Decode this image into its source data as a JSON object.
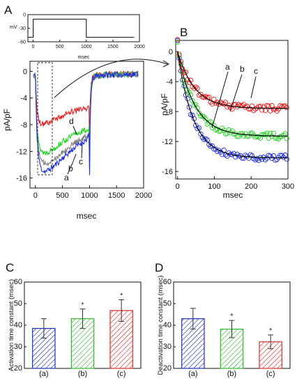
{
  "chart_data": [
    {
      "panel_label": "A",
      "type": "line",
      "inset": {
        "ylabel": "mV",
        "xlabel": "msec",
        "xlim": [
          -100,
          2000
        ],
        "ylim": [
          -60,
          0
        ],
        "xticks": [
          "0",
          "500",
          "1000",
          "1500",
          "2000"
        ],
        "yticks": [
          "0",
          "-30",
          "-60"
        ],
        "protocol": [
          [
            -100,
            -50
          ],
          [
            0,
            -50
          ],
          [
            0,
            -10
          ],
          [
            1000,
            -10
          ],
          [
            1000,
            -50
          ],
          [
            1900,
            -50
          ]
        ]
      },
      "xlabel": "msec",
      "ylabel": "pA/pF",
      "xlim": [
        -100,
        2000
      ],
      "ylim": [
        -17.5,
        1.5
      ],
      "xticks": [
        "0",
        "500",
        "1000",
        "1500",
        "2000"
      ],
      "yticks": [
        "0",
        "-4",
        "-8",
        "-12",
        "-16"
      ],
      "series": [
        {
          "name": "a",
          "color": "#1f2fe0",
          "x": [
            -40,
            0,
            10,
            30,
            60,
            100,
            150,
            200,
            300,
            400,
            500,
            600,
            700,
            800,
            900,
            980,
            995,
            1000,
            1010,
            1030,
            1060,
            1100,
            1200,
            1400,
            1600,
            1900
          ],
          "y": [
            -0.5,
            -0.6,
            -4,
            -10,
            -13,
            -14.5,
            -15,
            -15,
            -14.5,
            -13.8,
            -13,
            -12.3,
            -11.6,
            -11,
            -10.5,
            -10,
            -9,
            -16.5,
            -8,
            -3,
            -1.2,
            -0.8,
            -0.6,
            -0.5,
            -0.5,
            -0.4
          ]
        },
        {
          "name": "b",
          "color": "#808080",
          "x": [
            -40,
            0,
            10,
            30,
            60,
            100,
            150,
            200,
            300,
            400,
            500,
            600,
            700,
            800,
            900,
            980,
            995,
            1000,
            1010,
            1030,
            1060,
            1100,
            1200,
            1400,
            1600,
            1900
          ],
          "y": [
            -0.5,
            -0.6,
            -4,
            -9,
            -12,
            -13.3,
            -13.8,
            -13.8,
            -13.4,
            -12.8,
            -12.1,
            -11.5,
            -10.9,
            -10.4,
            -10,
            -9.6,
            -9,
            -15.5,
            -7.5,
            -2.8,
            -1.1,
            -0.8,
            -0.6,
            -0.5,
            -0.5,
            -0.4
          ]
        },
        {
          "name": "c",
          "color": "#22d422",
          "x": [
            -40,
            0,
            10,
            30,
            60,
            100,
            150,
            200,
            300,
            400,
            500,
            600,
            700,
            800,
            900,
            980,
            995,
            1000,
            1010,
            1030,
            1060,
            1100,
            1200,
            1400,
            1600,
            1900
          ],
          "y": [
            -0.5,
            -0.6,
            -4,
            -8.5,
            -10.8,
            -11.8,
            -12.2,
            -12.2,
            -11.8,
            -11.2,
            -10.6,
            -10.1,
            -9.6,
            -9.2,
            -8.9,
            -8.7,
            -8.2,
            -14.5,
            -7,
            -2.5,
            -1,
            -0.7,
            -0.6,
            -0.5,
            -0.5,
            -0.4
          ]
        },
        {
          "name": "d",
          "color": "#ee1b1b",
          "x": [
            -40,
            0,
            10,
            30,
            60,
            100,
            150,
            200,
            300,
            400,
            500,
            600,
            700,
            800,
            900,
            980,
            995,
            1000,
            1010,
            1030,
            1060,
            1100,
            1200,
            1400,
            1600,
            1900
          ],
          "y": [
            -0.5,
            -0.6,
            -3,
            -6,
            -7.2,
            -7.8,
            -7.9,
            -7.8,
            -7.4,
            -7,
            -6.6,
            -6.3,
            -6,
            -5.8,
            -5.6,
            -5.4,
            -5,
            -12.5,
            -5,
            -2,
            -0.9,
            -0.6,
            -0.5,
            -0.4,
            -0.4,
            -0.3
          ]
        }
      ]
    },
    {
      "panel_label": "B",
      "type": "scatter",
      "xlabel": "msec",
      "ylabel": "pA/pF",
      "xlim": [
        -5,
        300
      ],
      "ylim": [
        -17,
        1.5
      ],
      "xticks": [
        "0",
        "100",
        "200",
        "300"
      ],
      "yticks": [
        "0",
        "-4",
        "-8",
        "-12",
        "-16"
      ],
      "fit_color": "#111111",
      "series": [
        {
          "name": "a",
          "color": "#1f2fe0",
          "amplitude": -14.2,
          "tau": 43
        },
        {
          "name": "b",
          "color": "#22d422",
          "amplitude": -11.3,
          "tau": 47
        },
        {
          "name": "c",
          "color": "#ee1b1b",
          "amplitude": -7.6,
          "tau": 46
        }
      ]
    },
    {
      "panel_label": "C",
      "type": "bar",
      "ylabel": "Activation time constant (msec)",
      "ylim": [
        20,
        60
      ],
      "yticks": [
        "20",
        "30",
        "40",
        "50",
        "60"
      ],
      "categories": [
        "(a)",
        "(b)",
        "(c)"
      ],
      "values": [
        38.5,
        43,
        46.8
      ],
      "errors": [
        4.5,
        4.5,
        5
      ],
      "significance": [
        "",
        "*",
        "*"
      ],
      "colors": [
        "#1f2fb8",
        "#2fb82f",
        "#e02a2a"
      ]
    },
    {
      "panel_label": "D",
      "type": "bar",
      "ylabel": "Deactivation time constant (msec)",
      "ylim": [
        20,
        60
      ],
      "yticks": [
        "20",
        "30",
        "40",
        "50",
        "60"
      ],
      "categories": [
        "(a)",
        "(b)",
        "(c)"
      ],
      "values": [
        43,
        38.2,
        32.3
      ],
      "errors": [
        4.8,
        4,
        3.2
      ],
      "significance": [
        "",
        "*",
        "*"
      ],
      "colors": [
        "#1f2fb8",
        "#2fb82f",
        "#e02a2a"
      ]
    }
  ]
}
